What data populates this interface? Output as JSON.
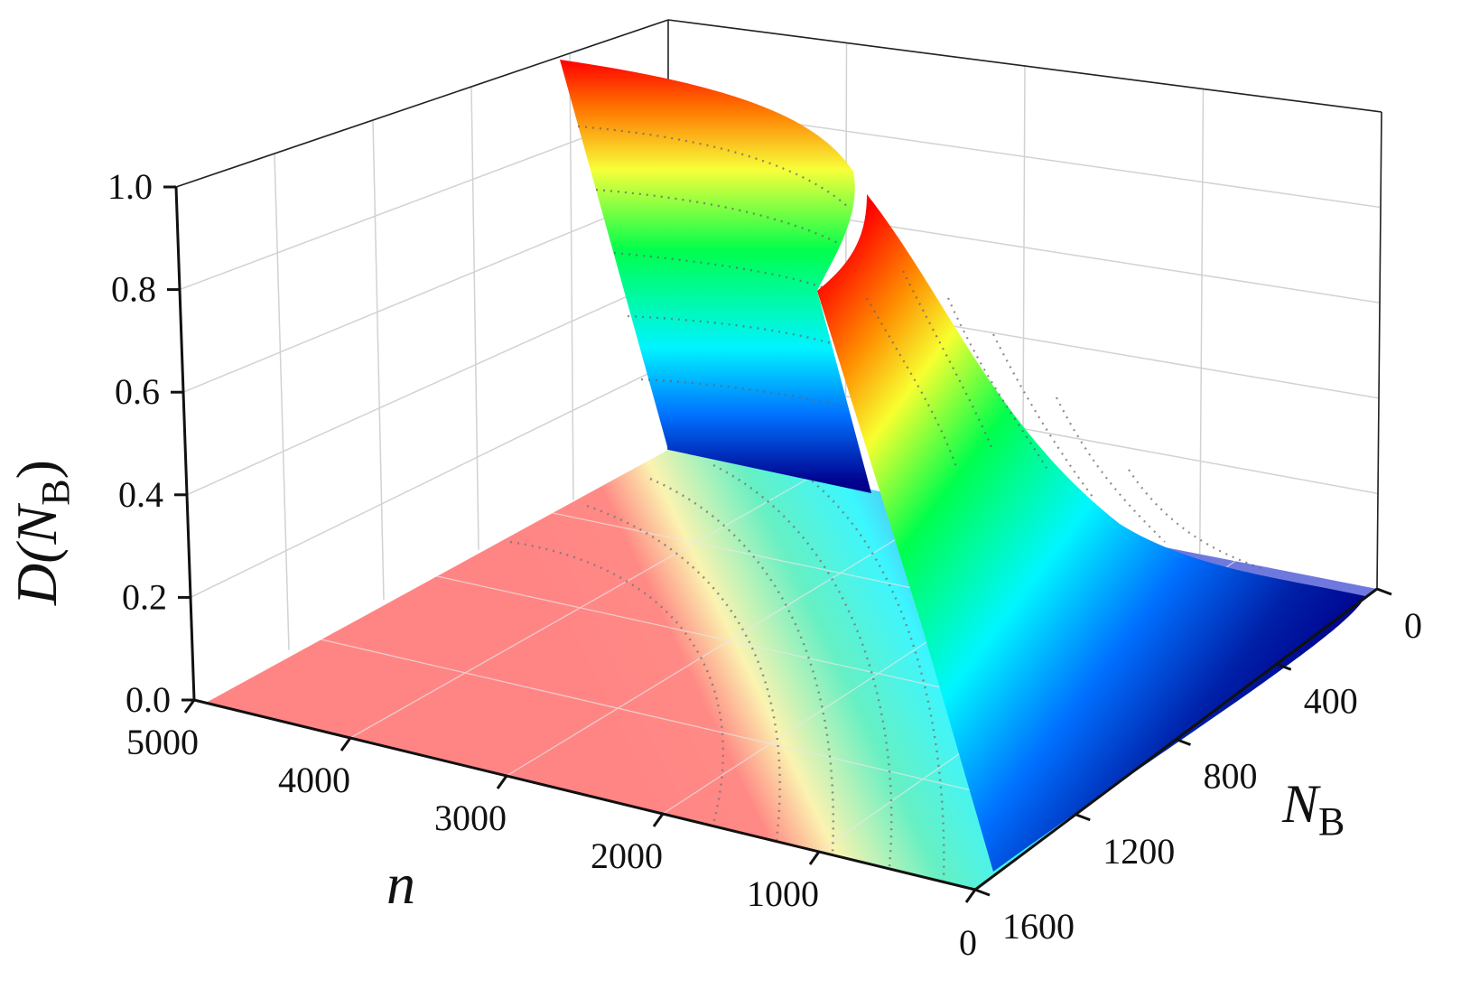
{
  "chart_data": {
    "type": "surface3d",
    "title": "",
    "axes": {
      "z": {
        "label_main": "D(N",
        "label_sub": "B",
        "label_close": ")",
        "range": [
          0,
          1
        ],
        "ticks": [
          "0.0",
          "0.2",
          "0.4",
          "0.6",
          "0.8",
          "1.0"
        ]
      },
      "n": {
        "label": "n",
        "range": [
          0,
          5000
        ],
        "ticks": [
          "0",
          "1000",
          "2000",
          "3000",
          "4000",
          "5000"
        ]
      },
      "nb": {
        "label_main": "N",
        "label_sub": "B",
        "range": [
          0,
          1600
        ],
        "ticks": [
          "0",
          "400",
          "800",
          "1200",
          "1600"
        ]
      }
    },
    "surface": {
      "description_values": [
        {
          "n": 4850,
          "nb": 0,
          "D": 1.0
        },
        {
          "n": 2900,
          "nb": 0,
          "D": 1.0
        },
        {
          "n": 3300,
          "nb": 0,
          "D": 0.0
        },
        {
          "n": 2900,
          "nb": 150,
          "D": 0.8
        },
        {
          "n": 2900,
          "nb": 700,
          "D": 0.4
        },
        {
          "n": 2900,
          "nb": 1300,
          "D": 0.05
        },
        {
          "n": 0,
          "nb": 1600,
          "D": 0.0
        }
      ]
    },
    "grid": true,
    "colormap": [
      "#00008c",
      "#0060ff",
      "#00f0ff",
      "#00ff50",
      "#f5ff30",
      "#ff9000",
      "#ff0000"
    ],
    "floor_projection_colors": [
      "#ff8080",
      "#faf5b0",
      "#50f5c8",
      "#40ffff",
      "#7070e0"
    ]
  }
}
